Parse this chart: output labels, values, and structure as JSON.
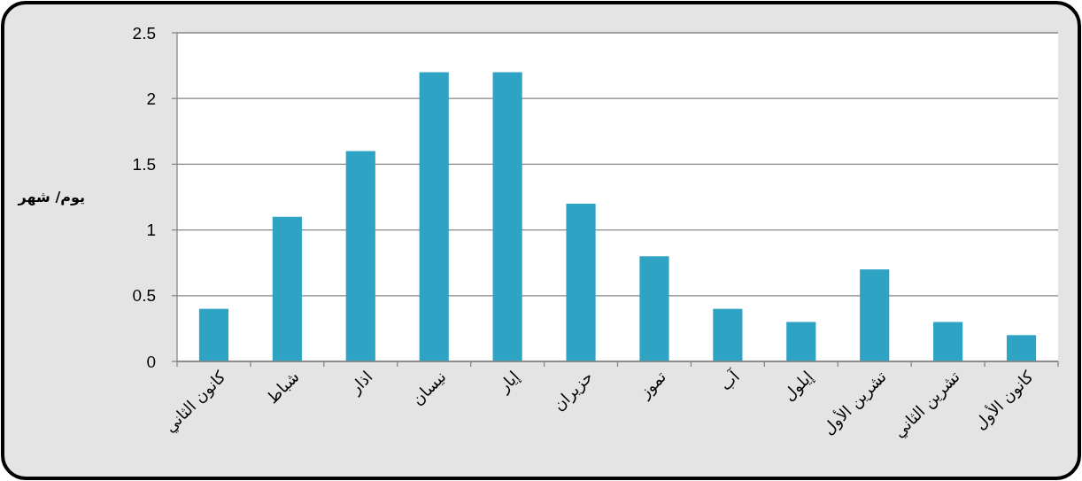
{
  "chart_data": {
    "type": "bar",
    "ylabel": "يوم/ شهر",
    "categories": [
      "كانون الثاني",
      "شباط",
      "اذار",
      "نيسان",
      "إيار",
      "حزيران",
      "تموز",
      "آب",
      "إيلول",
      "تشرين الأول",
      "تشرين الثاني",
      "كانون الأول"
    ],
    "values": [
      0.4,
      1.1,
      1.6,
      2.2,
      2.2,
      1.2,
      0.8,
      0.4,
      0.3,
      0.7,
      0.3,
      0.2
    ],
    "color": "#2fa3c4",
    "ylim": [
      0,
      2.5
    ],
    "yticks": [
      0,
      0.5,
      1,
      1.5,
      2,
      2.5
    ],
    "grid": "y"
  }
}
